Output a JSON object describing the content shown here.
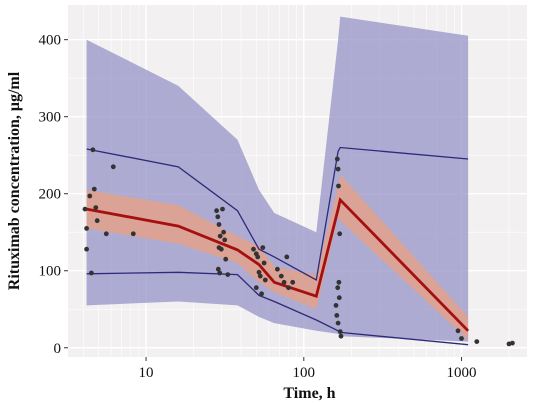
{
  "chart_data": {
    "type": "line",
    "xlabel": "Time, h",
    "ylabel": "Rituximab concentration, μg/ml",
    "x_scale": "log",
    "xlim": [
      3.2,
      2600
    ],
    "ylim": [
      -12,
      445
    ],
    "x_ticks": [
      10,
      100,
      1000
    ],
    "x_tick_labels": [
      "10",
      "100",
      "1000"
    ],
    "y_ticks": [
      0,
      100,
      200,
      300,
      400
    ],
    "y_tick_labels": [
      "0",
      "100",
      "200",
      "300",
      "400"
    ],
    "grid": true,
    "colors": {
      "background": "#f2f0f0",
      "grid": "#ffffff",
      "outer_band": "#9b97c9",
      "outer_line": "#2d2a7a",
      "inner_band": "#e3a08c",
      "median_line": "#a50f0f",
      "points": "#333333"
    },
    "outer_band": {
      "x": [
        4.2,
        16,
        38,
        52,
        65,
        120,
        165,
        170,
        1100
      ],
      "upper": [
        400,
        340,
        270,
        205,
        175,
        150,
        400,
        430,
        405
      ],
      "lower": [
        55,
        60,
        55,
        40,
        32,
        22,
        18,
        15,
        8
      ]
    },
    "inner_band": {
      "x": [
        4.2,
        16,
        38,
        52,
        65,
        120,
        165,
        170,
        1100
      ],
      "upper": [
        205,
        185,
        145,
        132,
        105,
        95,
        210,
        225,
        40
      ],
      "lower": [
        155,
        135,
        110,
        85,
        72,
        50,
        170,
        165,
        10
      ]
    },
    "series": [
      {
        "x": [
          4.2,
          16,
          38,
          52,
          65,
          120,
          165,
          170,
          1100
        ],
        "values": [
          258,
          235,
          178,
          128,
          118,
          88,
          255,
          260,
          245
        ]
      },
      {
        "x": [
          4.2,
          16,
          38,
          52,
          65,
          120,
          165,
          170,
          1100
        ],
        "values": [
          96,
          98,
          95,
          68,
          60,
          36,
          22,
          20,
          4
        ]
      },
      {
        "x": [
          4.2,
          16,
          38,
          52,
          65,
          120,
          165,
          170,
          1100
        ],
        "values": [
          180,
          158,
          127,
          108,
          85,
          67,
          180,
          192,
          22
        ]
      }
    ],
    "points": [
      [
        4.1,
        180
      ],
      [
        4.2,
        155
      ],
      [
        4.2,
        128
      ],
      [
        4.4,
        197
      ],
      [
        4.5,
        97
      ],
      [
        4.6,
        257
      ],
      [
        4.7,
        206
      ],
      [
        4.8,
        182
      ],
      [
        4.9,
        165
      ],
      [
        5.6,
        148
      ],
      [
        6.2,
        235
      ],
      [
        8.3,
        148
      ],
      [
        28,
        178
      ],
      [
        28.5,
        170
      ],
      [
        29,
        160
      ],
      [
        29.5,
        145
      ],
      [
        29,
        130
      ],
      [
        30,
        128
      ],
      [
        28.7,
        102
      ],
      [
        29.3,
        97
      ],
      [
        30.5,
        180
      ],
      [
        31,
        150
      ],
      [
        31.5,
        140
      ],
      [
        32,
        115
      ],
      [
        33,
        95
      ],
      [
        48,
        128
      ],
      [
        50,
        122
      ],
      [
        51,
        118
      ],
      [
        52,
        98
      ],
      [
        53,
        93
      ],
      [
        50,
        78
      ],
      [
        54,
        70
      ],
      [
        55,
        130
      ],
      [
        56,
        110
      ],
      [
        57,
        88
      ],
      [
        68,
        102
      ],
      [
        72,
        93
      ],
      [
        75,
        85
      ],
      [
        78,
        118
      ],
      [
        80,
        78
      ],
      [
        85,
        85
      ],
      [
        163,
        245
      ],
      [
        165,
        232
      ],
      [
        166,
        210
      ],
      [
        167,
        85
      ],
      [
        164,
        78
      ],
      [
        168,
        65
      ],
      [
        160,
        55
      ],
      [
        162,
        42
      ],
      [
        165,
        32
      ],
      [
        170,
        21
      ],
      [
        172,
        15
      ],
      [
        169,
        148
      ],
      [
        950,
        22
      ],
      [
        1000,
        12
      ],
      [
        1250,
        8
      ],
      [
        2000,
        5
      ],
      [
        2100,
        6
      ]
    ]
  }
}
